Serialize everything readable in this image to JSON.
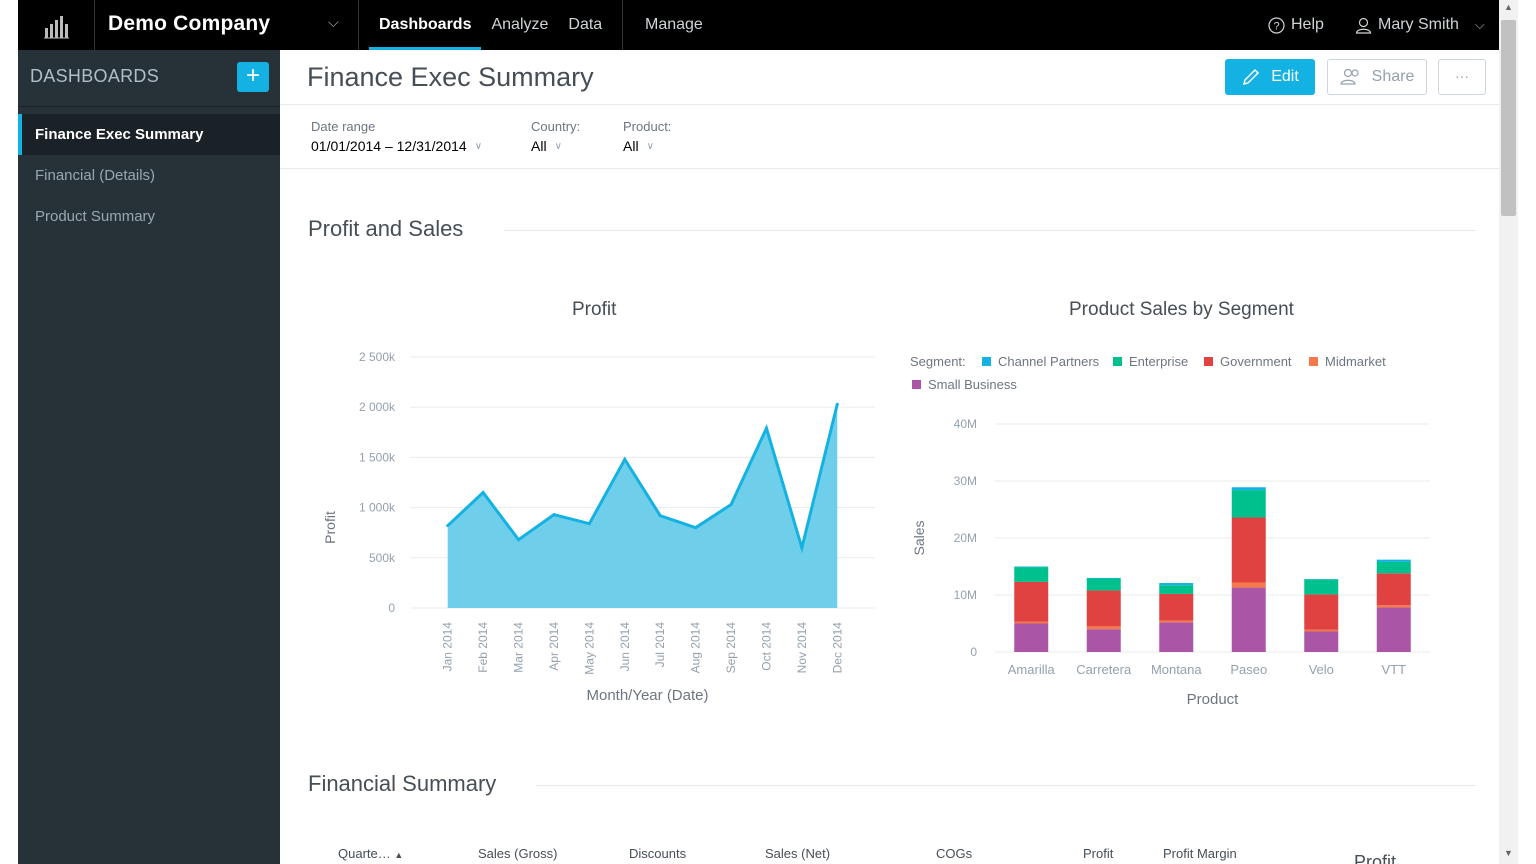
{
  "topbar": {
    "company": "Demo Company",
    "nav": [
      {
        "label": "Dashboards",
        "active": true
      },
      {
        "label": "Analyze",
        "active": false
      },
      {
        "label": "Data",
        "active": false
      }
    ],
    "manage": "Manage",
    "help": "Help",
    "user": "Mary Smith"
  },
  "sidebar": {
    "header": "DASHBOARDS",
    "add_label": "+",
    "items": [
      {
        "label": "Finance Exec Summary",
        "active": true
      },
      {
        "label": "Financial (Details)",
        "active": false
      },
      {
        "label": "Product Summary",
        "active": false
      }
    ]
  },
  "main": {
    "title": "Finance Exec Summary",
    "edit_label": "Edit",
    "share_label": "Share",
    "more_label": "···"
  },
  "filters": [
    {
      "label": "Date range",
      "value": "01/01/2014 – 12/31/2014"
    },
    {
      "label": "Country:",
      "value": "All"
    },
    {
      "label": "Product:",
      "value": "All"
    }
  ],
  "sections": {
    "profit_sales": "Profit and Sales",
    "financial_summary": "Financial Summary"
  },
  "table": {
    "headers": [
      "Quarte…",
      "Sales (Gross)",
      "Discounts",
      "Sales (Net)",
      "COGs",
      "Profit",
      "Profit Margin",
      "Profit"
    ]
  },
  "colors": {
    "accent": "#14b2e2",
    "sidebar_bg": "#263238",
    "area_fill": "#6fcfeb",
    "area_line": "#14b2e2"
  },
  "chart_data": [
    {
      "type": "area",
      "title": "Profit",
      "xlabel": "Month/Year (Date)",
      "ylabel": "Profit",
      "categories": [
        "Jan 2014",
        "Feb 2014",
        "Mar 2014",
        "Apr 2014",
        "May 2014",
        "Jun 2014",
        "Jul 2014",
        "Aug 2014",
        "Sep 2014",
        "Oct 2014",
        "Nov 2014",
        "Dec 2014"
      ],
      "values": [
        820000,
        1150000,
        680000,
        930000,
        840000,
        1480000,
        920000,
        800000,
        1030000,
        1790000,
        600000,
        2030000
      ],
      "yticks": [
        "0",
        "500k",
        "1 000k",
        "1 500k",
        "2 000k",
        "2 500k"
      ],
      "ylim": [
        0,
        2500000
      ],
      "grid": true
    },
    {
      "type": "bar",
      "stacked": true,
      "title": "Product Sales by Segment",
      "xlabel": "Product",
      "ylabel": "Sales",
      "legend_title": "Segment:",
      "legend_position": "top-left",
      "categories": [
        "Amarilla",
        "Carretera",
        "Montana",
        "Paseo",
        "Velo",
        "VTT"
      ],
      "yticks": [
        "0",
        "10M",
        "20M",
        "30M",
        "40M"
      ],
      "ylim": [
        0,
        40000000
      ],
      "series": [
        {
          "name": "Small Business",
          "color": "#ab55a7",
          "values": [
            5000000,
            4000000,
            5200000,
            11300000,
            3600000,
            7800000
          ]
        },
        {
          "name": "Midmarket",
          "color": "#f4784a",
          "values": [
            300000,
            500000,
            300000,
            900000,
            300000,
            400000
          ]
        },
        {
          "name": "Government",
          "color": "#e04141",
          "values": [
            7000000,
            6300000,
            4700000,
            11400000,
            6200000,
            5600000
          ]
        },
        {
          "name": "Enterprise",
          "color": "#00c18d",
          "values": [
            2600000,
            2100000,
            1500000,
            4800000,
            2600000,
            2000000
          ]
        },
        {
          "name": "Channel Partners",
          "color": "#14b2e2",
          "values": [
            100000,
            100000,
            400000,
            500000,
            100000,
            400000
          ]
        }
      ],
      "grid": true
    }
  ]
}
